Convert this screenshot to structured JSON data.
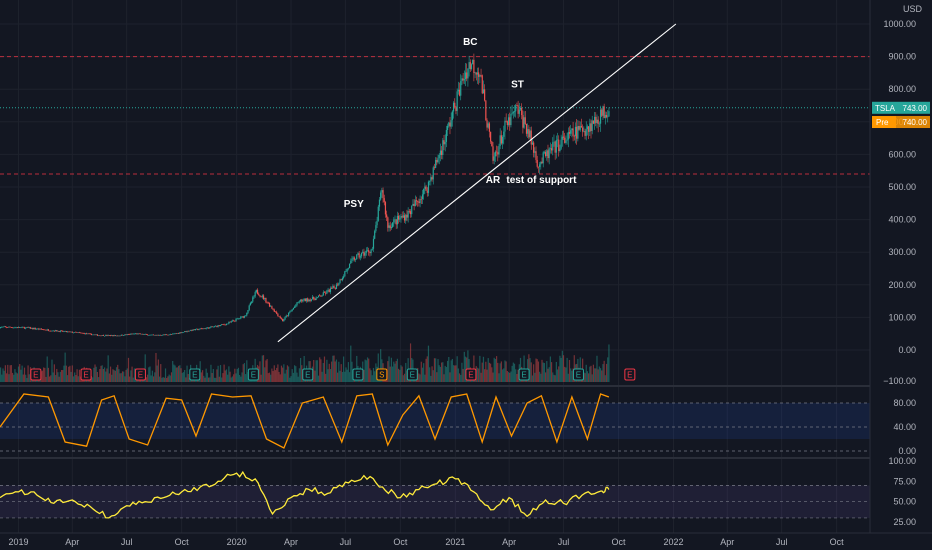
{
  "chart_data": [
    {
      "type": "candlestick",
      "axis_currency": "USD",
      "y_ticks": [
        0,
        100,
        200,
        300,
        400,
        500,
        600,
        700,
        800,
        900,
        1000
      ],
      "y_tick_labels": [
        "0.00",
        "100.00",
        "200.00",
        "300.00",
        "400.00",
        "500.00",
        "600.00",
        "700.00",
        "800.00",
        "900.00",
        "1000.00"
      ],
      "y_bottom_label": "−100.00",
      "ylim": [
        -100,
        1050
      ],
      "x_tick_labels": [
        "2019",
        "Apr",
        "Jul",
        "Oct",
        "2020",
        "Apr",
        "Jul",
        "Oct",
        "2021",
        "Apr",
        "Jul",
        "Oct",
        "2022",
        "Apr",
        "Jul",
        "Oct"
      ],
      "x_range": [
        "2018-12-01",
        "2022-12-01"
      ],
      "price_series": {
        "dates": [
          "2018-12-15",
          "2019-01-15",
          "2019-02-15",
          "2019-03-15",
          "2019-04-15",
          "2019-05-15",
          "2019-06-15",
          "2019-07-15",
          "2019-08-15",
          "2019-09-15",
          "2019-10-15",
          "2019-11-15",
          "2019-12-15",
          "2020-01-15",
          "2020-02-03",
          "2020-02-15",
          "2020-03-18",
          "2020-04-15",
          "2020-05-15",
          "2020-06-15",
          "2020-07-15",
          "2020-08-15",
          "2020-08-31",
          "2020-09-10",
          "2020-10-15",
          "2020-11-15",
          "2020-12-15",
          "2021-01-15",
          "2021-01-26",
          "2021-02-10",
          "2021-03-05",
          "2021-03-25",
          "2021-04-15",
          "2021-05-01",
          "2021-05-20",
          "2021-06-15",
          "2021-07-15",
          "2021-08-15",
          "2021-09-01",
          "2021-09-15"
        ],
        "close": [
          70,
          68,
          62,
          57,
          52,
          45,
          44,
          50,
          45,
          48,
          60,
          68,
          80,
          105,
          180,
          160,
          90,
          150,
          160,
          195,
          280,
          310,
          495,
          380,
          420,
          500,
          650,
          840,
          880,
          860,
          580,
          680,
          740,
          680,
          570,
          620,
          660,
          690,
          720,
          743
        ]
      },
      "support_line": {
        "from": {
          "date": "2020-03-10",
          "value": 25
        },
        "to": {
          "date": "2022-01-05",
          "value": 1000
        }
      },
      "horizontal_levels": [
        900,
        540
      ],
      "annotations": [
        {
          "label": "BC",
          "date": "2021-01-26",
          "value": 935
        },
        {
          "label": "ST",
          "date": "2021-04-15",
          "value": 805
        },
        {
          "label": "PSY",
          "date": "2020-07-15",
          "value": 438
        },
        {
          "label": "AR",
          "date": "2021-03-05",
          "value": 513
        },
        {
          "label": "test of support",
          "date": "2021-05-25",
          "value": 513
        }
      ],
      "last_price": {
        "symbol": "TSLA",
        "value": "743.00",
        "level": 743
      },
      "pre_market": {
        "label": "Pre",
        "value": "740.00",
        "level": 730
      },
      "event_markers": [
        {
          "type": "E",
          "color": "#f23645",
          "date": "2019-01-30"
        },
        {
          "type": "E",
          "color": "#f23645",
          "date": "2019-04-24"
        },
        {
          "type": "E",
          "color": "#f23645",
          "date": "2019-07-24"
        },
        {
          "type": "E",
          "color": "#26a69a",
          "date": "2019-10-23"
        },
        {
          "type": "E",
          "color": "#26a69a",
          "date": "2020-01-29"
        },
        {
          "type": "E",
          "color": "#26a69a",
          "date": "2020-04-29"
        },
        {
          "type": "E",
          "color": "#26a69a",
          "date": "2020-07-22"
        },
        {
          "type": "S",
          "color": "#ff9800",
          "date": "2020-08-31"
        },
        {
          "type": "E",
          "color": "#26a69a",
          "date": "2020-10-21"
        },
        {
          "type": "E",
          "color": "#f23645",
          "date": "2021-01-27"
        },
        {
          "type": "E",
          "color": "#26a69a",
          "date": "2021-04-26"
        },
        {
          "type": "E",
          "color": "#26a69a",
          "date": "2021-07-26"
        },
        {
          "type": "E",
          "color": "#f23645",
          "date": "2021-10-20"
        }
      ]
    },
    {
      "type": "line",
      "name": "stochastic-oscillator",
      "y_ticks": [
        0,
        40,
        80
      ],
      "y_tick_labels": [
        "0.00",
        "40.00",
        "80.00"
      ],
      "ylim": [
        -5,
        105
      ],
      "band": [
        20,
        80
      ],
      "color": "#ff9800",
      "x": [
        "2018-12-01",
        "2019-01-10",
        "2019-02-20",
        "2019-03-20",
        "2019-04-25",
        "2019-05-20",
        "2019-06-10",
        "2019-07-05",
        "2019-08-05",
        "2019-09-05",
        "2019-10-01",
        "2019-10-25",
        "2019-11-20",
        "2019-12-25",
        "2020-01-25",
        "2020-02-20",
        "2020-03-20",
        "2020-04-20",
        "2020-05-25",
        "2020-06-25",
        "2020-07-20",
        "2020-08-15",
        "2020-09-10",
        "2020-10-05",
        "2020-11-01",
        "2020-11-28",
        "2020-12-25",
        "2021-01-20",
        "2021-02-15",
        "2021-03-10",
        "2021-04-05",
        "2021-05-01",
        "2021-05-25",
        "2021-06-20",
        "2021-07-15",
        "2021-08-10",
        "2021-09-01",
        "2021-09-15"
      ],
      "y": [
        40,
        95,
        90,
        15,
        8,
        85,
        92,
        20,
        10,
        88,
        85,
        25,
        95,
        90,
        92,
        20,
        5,
        80,
        90,
        15,
        92,
        95,
        10,
        60,
        92,
        20,
        90,
        95,
        15,
        90,
        25,
        80,
        92,
        15,
        90,
        20,
        95,
        90
      ]
    },
    {
      "type": "line",
      "name": "rsi",
      "y_ticks": [
        25,
        50,
        75,
        100
      ],
      "y_tick_labels": [
        "25.00",
        "50.00",
        "75.00",
        "100.00"
      ],
      "ylim": [
        20,
        102
      ],
      "band": [
        30,
        70
      ],
      "color": "#ffeb3b",
      "x": [
        "2018-12-01",
        "2019-01-01",
        "2019-02-01",
        "2019-03-01",
        "2019-04-01",
        "2019-05-01",
        "2019-06-01",
        "2019-07-01",
        "2019-08-01",
        "2019-09-01",
        "2019-10-01",
        "2019-11-01",
        "2019-12-01",
        "2020-01-01",
        "2020-02-01",
        "2020-03-01",
        "2020-04-01",
        "2020-05-01",
        "2020-06-01",
        "2020-07-01",
        "2020-08-01",
        "2020-09-01",
        "2020-10-01",
        "2020-11-01",
        "2020-12-01",
        "2021-01-01",
        "2021-02-01",
        "2021-03-01",
        "2021-04-01",
        "2021-05-01",
        "2021-06-01",
        "2021-07-01",
        "2021-08-01",
        "2021-09-01",
        "2021-09-15"
      ],
      "y": [
        55,
        62,
        58,
        48,
        52,
        44,
        30,
        45,
        50,
        55,
        62,
        68,
        75,
        85,
        78,
        35,
        55,
        65,
        60,
        74,
        82,
        68,
        55,
        65,
        72,
        78,
        62,
        40,
        55,
        32,
        52,
        48,
        58,
        63,
        65
      ]
    }
  ]
}
